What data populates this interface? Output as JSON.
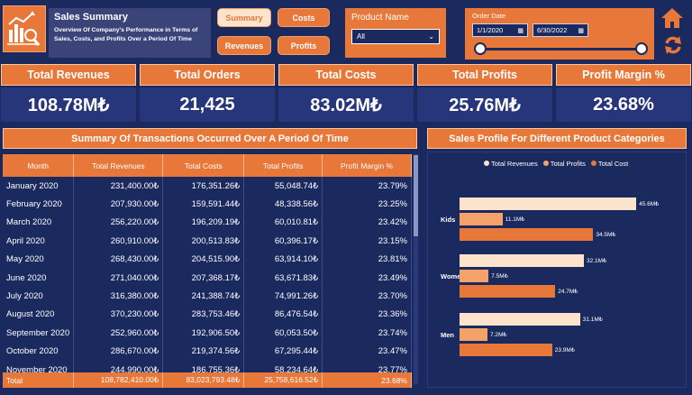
{
  "header": {
    "title": "Sales Summary",
    "subtitle": "Overview Of Company's Performance in Terms of Sales, Costs, and Profits Over a Period Of Time"
  },
  "nav": {
    "summary": "Summary",
    "costs": "Costs",
    "revenues": "Revenues",
    "profits": "Profits"
  },
  "filters": {
    "product_label": "Product Name",
    "product_value": "All",
    "order_date_label": "Order Date",
    "start_date": "1/1/2020",
    "end_date": "6/30/2022"
  },
  "kpis": [
    {
      "label": "Total Revenues",
      "value": "108.78M₺"
    },
    {
      "label": "Total Orders",
      "value": "21,425"
    },
    {
      "label": "Total Costs",
      "value": "83.02M₺"
    },
    {
      "label": "Total Profits",
      "value": "25.76M₺"
    },
    {
      "label": "Profit Margin %",
      "value": "23.68%"
    }
  ],
  "table": {
    "title": "Summary Of Transactions Occurred Over A Period Of Time",
    "columns": [
      "Month",
      "Total Revenues",
      "Total Costs",
      "Total Profits",
      "Profit Margin %"
    ],
    "rows": [
      [
        "January 2020",
        "231,400.00₺",
        "176,351.26₺",
        "55,048.74₺",
        "23.79%"
      ],
      [
        "February 2020",
        "207,930.00₺",
        "159,591.44₺",
        "48,338.56₺",
        "23.25%"
      ],
      [
        "March 2020",
        "256,220.00₺",
        "196,209.19₺",
        "60,010.81₺",
        "23.42%"
      ],
      [
        "April 2020",
        "260,910.00₺",
        "200,513.83₺",
        "60,396.17₺",
        "23.15%"
      ],
      [
        "May 2020",
        "268,430.00₺",
        "204,515.90₺",
        "63,914.10₺",
        "23.81%"
      ],
      [
        "June 2020",
        "271,040.00₺",
        "207,368.17₺",
        "63,671.83₺",
        "23.49%"
      ],
      [
        "July 2020",
        "316,380.00₺",
        "241,388.74₺",
        "74,991.26₺",
        "23.70%"
      ],
      [
        "August 2020",
        "370,230.00₺",
        "283,753.46₺",
        "86,476.54₺",
        "23.36%"
      ],
      [
        "September 2020",
        "252,960.00₺",
        "192,906.50₺",
        "60,053.50₺",
        "23.74%"
      ],
      [
        "October 2020",
        "286,670.00₺",
        "219,374.56₺",
        "67,295.44₺",
        "23.47%"
      ],
      [
        "November 2020",
        "244,990.00₺",
        "186,755.36₺",
        "58,234.64₺",
        "23.77%"
      ]
    ],
    "total": [
      "Total",
      "108,782,410.00₺",
      "83,023,793.48₺",
      "25,758,616.52₺",
      "23.68%"
    ]
  },
  "chart_title": "Sales Profile For Different Product Categories",
  "chart_data": {
    "type": "bar",
    "orientation": "horizontal",
    "categories": [
      "Kids",
      "Women",
      "Men"
    ],
    "series": [
      {
        "name": "Total Revenues",
        "color": "#fbe3cc",
        "values": [
          45.6,
          32.1,
          31.1
        ],
        "labels": [
          "45.6M₺",
          "32.1M₺",
          "31.1M₺"
        ]
      },
      {
        "name": "Total Profits",
        "color": "#f4a26a",
        "values": [
          11.1,
          7.5,
          7.2
        ],
        "labels": [
          "11.1M₺",
          "7.5M₺",
          "7.2M₺"
        ]
      },
      {
        "name": "Total Cost",
        "color": "#e8783a",
        "values": [
          34.5,
          24.7,
          23.9
        ],
        "labels": [
          "34.5M₺",
          "24.7M₺",
          "23.9M₺"
        ]
      }
    ],
    "legend": "top-center",
    "grid": false
  }
}
